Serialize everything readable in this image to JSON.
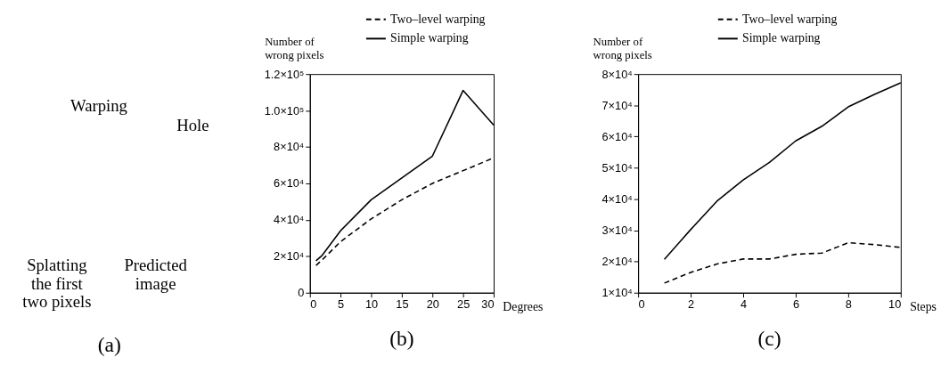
{
  "chart_data": [
    {
      "type": "other",
      "title": "(a)",
      "annotations": [
        "Warping",
        "Hole",
        "Splatting the first two pixels",
        "Predicted image"
      ]
    },
    {
      "type": "line",
      "title": "(b)",
      "xlabel": "Degrees",
      "ylabel": "Number of wrong pixels",
      "legend": "top",
      "grid": false,
      "x": [
        1,
        2,
        5,
        10,
        15,
        20,
        25,
        30
      ],
      "xlim": [
        0,
        30
      ],
      "xticks": [
        0,
        5,
        10,
        15,
        20,
        25,
        30
      ],
      "ylim": [
        0,
        120000
      ],
      "yticks": [
        0,
        {
          "value": 20000,
          "label": "2×10⁴"
        },
        {
          "value": 40000,
          "label": "4×10⁴"
        },
        {
          "value": 60000,
          "label": "6×10⁴"
        },
        {
          "value": 80000,
          "label": "8×10⁴"
        },
        {
          "value": 100000,
          "label": "1.0×10⁵"
        },
        {
          "value": 120000,
          "label": "1.2×10⁵"
        }
      ],
      "series": [
        {
          "name": "Two–level warping",
          "color": "#000000",
          "line_style": "dashed",
          "values": [
            15000,
            18000,
            28000,
            40500,
            51000,
            60000,
            67000,
            74000
          ]
        },
        {
          "name": "Simple warping",
          "color": "#000000",
          "line_style": "solid",
          "values": [
            17500,
            20500,
            34000,
            51000,
            63000,
            75000,
            111000,
            92000
          ]
        }
      ]
    },
    {
      "type": "line",
      "title": "(c)",
      "xlabel": "Steps",
      "ylabel": "Number of wrong pixels",
      "legend": "top",
      "grid": false,
      "x": [
        1,
        2,
        3,
        4,
        5,
        6,
        7,
        8,
        9,
        10
      ],
      "xlim": [
        0,
        10
      ],
      "xticks": [
        0,
        2,
        4,
        6,
        8,
        10
      ],
      "ylim": [
        10000,
        80000
      ],
      "yticks": [
        {
          "value": 10000,
          "label": "1×10⁴"
        },
        {
          "value": 20000,
          "label": "2×10⁴"
        },
        {
          "value": 30000,
          "label": "3×10⁴"
        },
        {
          "value": 40000,
          "label": "4×10⁴"
        },
        {
          "value": 50000,
          "label": "5×10⁴"
        },
        {
          "value": 60000,
          "label": "6×10⁴"
        },
        {
          "value": 70000,
          "label": "7×10⁴"
        },
        {
          "value": 80000,
          "label": "8×10⁴"
        }
      ],
      "series": [
        {
          "name": "Two–level warping",
          "color": "#000000",
          "line_style": "dashed",
          "values": [
            13100,
            16500,
            19200,
            20800,
            20800,
            22300,
            22700,
            26000,
            25400,
            24500
          ]
        },
        {
          "name": "Simple warping",
          "color": "#000000",
          "line_style": "solid",
          "values": [
            20700,
            30200,
            39300,
            46100,
            51700,
            58600,
            63300,
            69500,
            73500,
            77200
          ]
        }
      ]
    }
  ]
}
